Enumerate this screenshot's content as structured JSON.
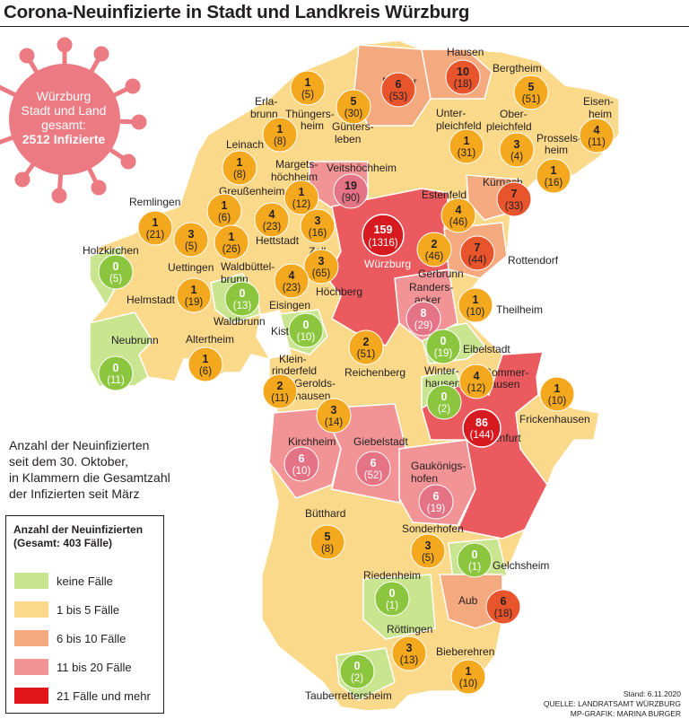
{
  "title": "Corona-Neuinfizierte in Stadt und Landkreis Würzburg",
  "callout": {
    "line1": "Würzburg",
    "line2": "Stadt und Land",
    "line3": "gesamt:",
    "line4": "2512 Infizierte"
  },
  "explanation": {
    "line1": "Anzahl der Neuinfizierten",
    "line2": "seit dem 30. Oktober,",
    "line3": "in Klammern die Gesamtzahl",
    "line4": "der Infizierten seit März"
  },
  "legend": {
    "title1": "Anzahl der Neuinfizierten",
    "title2": "(Gesamt: 403 Fälle)",
    "items": [
      {
        "label": "keine Fälle",
        "color": "#c9e58f"
      },
      {
        "label": "1 bis 5 Fälle",
        "color": "#fbd98a"
      },
      {
        "label": "6 bis 10 Fälle",
        "color": "#f5a97e"
      },
      {
        "label": "11 bis 20 Fälle",
        "color": "#f29396"
      },
      {
        "label": "21 Fälle und mehr",
        "color": "#e3151c"
      }
    ]
  },
  "credits": {
    "date": "Stand: 6.11.2020",
    "source": "QUELLE: LANDRATSAMT WÜRZBURG",
    "graphic": "MP-GRAFIK: MARINA BURGER"
  },
  "colors": {
    "none": "#c9e58f",
    "low": "#fbd98a",
    "mid": "#f5a97e",
    "high": "#f29396",
    "top": "#e3151c",
    "bubble_none": "#8cc63f",
    "bubble_low": "#f4a81d",
    "bubble_mid": "#e8542c",
    "bubble_high": "#e57386",
    "bubble_top": "#d71920",
    "virus": "#ec7a82"
  },
  "municipalities": [
    {
      "name": "Rimpar",
      "new": "6",
      "total": "(53)"
    },
    {
      "name": "Hausen",
      "new": "10",
      "total": "(18)"
    },
    {
      "name": "Bergtheim",
      "new": "5",
      "total": "(51)"
    },
    {
      "name": "Eisenheim",
      "new": "4",
      "total": "(11)"
    },
    {
      "name": "Erlabrunn",
      "new": "1",
      "total": "(5)"
    },
    {
      "name": "Thüngersheim",
      "new": "5",
      "total": "(30)"
    },
    {
      "name": "Leinach",
      "new": "1",
      "total": "(8)"
    },
    {
      "name": "Güntersleben",
      "new": "",
      "total": ""
    },
    {
      "name": "Unterpleichfeld",
      "new": "1",
      "total": "(31)"
    },
    {
      "name": "Oberpleichfeld",
      "new": "3",
      "total": "(4)"
    },
    {
      "name": "Prosselsheim",
      "new": "1",
      "total": "(16)"
    },
    {
      "name": "Margetshöchheim",
      "new": "1",
      "total": "(12)"
    },
    {
      "name": "Veitshöchheim",
      "new": "19",
      "total": "(90)"
    },
    {
      "name": "Kürnach",
      "new": "7",
      "total": "(33)"
    },
    {
      "name": "Greußenheim",
      "new": "1",
      "total": "(6)"
    },
    {
      "name": "Remlingen",
      "new": "1",
      "total": "(21)"
    },
    {
      "name": "Estenfeld",
      "new": "4",
      "total": "(46)"
    },
    {
      "name": "Würzburg",
      "new": "159",
      "total": "(1316)"
    },
    {
      "name": "Hettstadt",
      "new": "1",
      "total": "(26)"
    },
    {
      "name": "Zell",
      "new": "3",
      "total": "(16)"
    },
    {
      "name": "Rottendorf",
      "new": "7",
      "total": "(44)"
    },
    {
      "name": "Holzkirchen",
      "new": "0",
      "total": "(5)"
    },
    {
      "name": "Uettingen",
      "new": "3",
      "total": "(5)"
    },
    {
      "name": "Waldbüttelbrunn",
      "new": "4",
      "total": "(23)"
    },
    {
      "name": "Gerbrunn",
      "new": "2",
      "total": "(46)"
    },
    {
      "name": "Höchberg",
      "new": "3",
      "total": "(65)"
    },
    {
      "name": "Helmstadt",
      "new": "1",
      "total": "(19)"
    },
    {
      "name": "Waldbrunn",
      "new": "0",
      "total": "(13)"
    },
    {
      "name": "Eisingen",
      "new": "4",
      "total": "(23)"
    },
    {
      "name": "Randersacker",
      "new": "8",
      "total": "(29)"
    },
    {
      "name": "Theilheim",
      "new": "1",
      "total": "(10)"
    },
    {
      "name": "Kist",
      "new": "0",
      "total": "(10)"
    },
    {
      "name": "Neubrunn",
      "new": "0",
      "total": "(11)"
    },
    {
      "name": "Altertheim",
      "new": "1",
      "total": "(6)"
    },
    {
      "name": "Eibelstadt",
      "new": "0",
      "total": "(19)"
    },
    {
      "name": "Reichenberg",
      "new": "2",
      "total": "(51)"
    },
    {
      "name": "Kleinrinderfeld",
      "new": "2",
      "total": "(11)"
    },
    {
      "name": "Winterhausen",
      "new": "0",
      "total": "(2)"
    },
    {
      "name": "Sommerhausen",
      "new": "4",
      "total": "(12)"
    },
    {
      "name": "Frickenhausen",
      "new": "1",
      "total": "(10)"
    },
    {
      "name": "Geroldshausen",
      "new": "3",
      "total": "(14)"
    },
    {
      "name": "Ochsenfurt",
      "new": "86",
      "total": "(144)"
    },
    {
      "name": "Kirchheim",
      "new": "6",
      "total": "(10)"
    },
    {
      "name": "Giebelstadt",
      "new": "6",
      "total": "(52)"
    },
    {
      "name": "Gaukönigshofen",
      "new": "6",
      "total": "(19)"
    },
    {
      "name": "Bütthard",
      "new": "5",
      "total": "(8)"
    },
    {
      "name": "Sonderhofen",
      "new": "3",
      "total": "(5)"
    },
    {
      "name": "Gelchsheim",
      "new": "0",
      "total": "(1)"
    },
    {
      "name": "Riedenheim",
      "new": "0",
      "total": "(1)"
    },
    {
      "name": "Aub",
      "new": "6",
      "total": "(18)"
    },
    {
      "name": "Röttingen",
      "new": "3",
      "total": "(13)"
    },
    {
      "name": "Bieberehren",
      "new": "1",
      "total": "(10)"
    },
    {
      "name": "Tauberrettersheim",
      "new": "0",
      "total": "(2)"
    }
  ],
  "labels": {
    "erlabrunn_a": "Erla-",
    "erlabrunn_b": "brunn",
    "thuengersheim_a": "Thüngers-",
    "thuengersheim_b": "heim",
    "guentersleben_a": "Günters-",
    "guentersleben_b": "leben",
    "margets_a": "Margets-",
    "margets_b": "höchheim",
    "unterpleich_a": "Unter-",
    "unterpleich_b": "pleichfeld",
    "oberpleich_a": "Ober-",
    "oberpleich_b": "pleichfeld",
    "prossels_a": "Prossels-",
    "prossels_b": "heim",
    "eisen_a": "Eisen-",
    "eisen_b": "heim",
    "waldbuettel_a": "Waldbüttel-",
    "waldbuettel_b": "brunn",
    "randers_a": "Randers-",
    "randers_b": "acker",
    "klein_a": "Klein-",
    "klein_b": "rinderfeld",
    "winter_a": "Winter-",
    "winter_b": "hausen",
    "sommer_a": "Sommer-",
    "sommer_b": "hausen",
    "gerolds_a": "Gerolds-",
    "gerolds_b": "hausen",
    "gauk_a": "Gaukönigs-",
    "gauk_b": "hofen"
  }
}
